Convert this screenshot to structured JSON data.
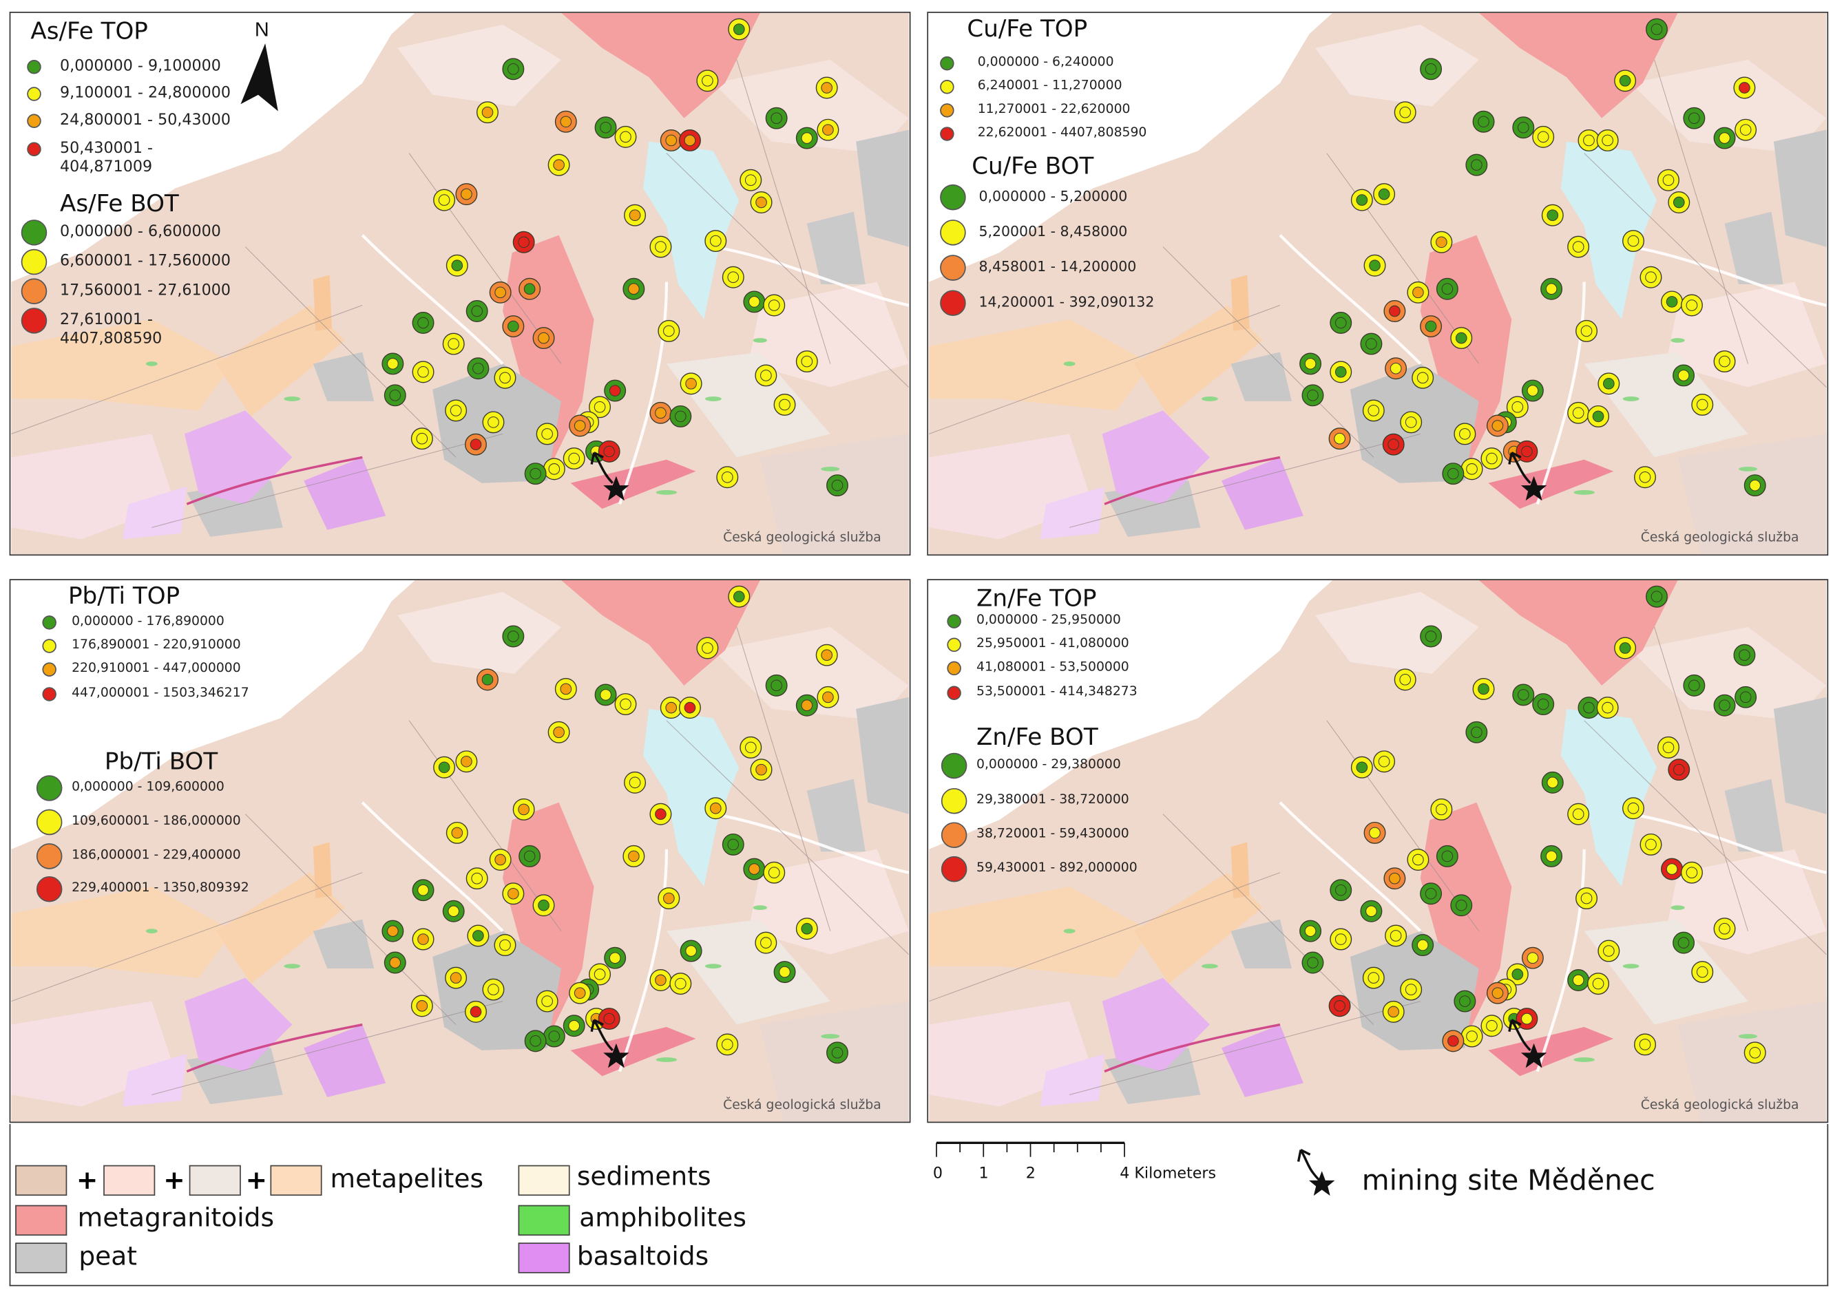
{
  "colors": {
    "green": "#3c9b1f",
    "yellow": "#f7f314",
    "orange_top": "#f2a010",
    "orange_bot": "#f2873a",
    "red": "#e0231c",
    "metapelites_1": "#e6cbb8",
    "metapelites_2": "#fde0d8",
    "metapelites_3": "#efe8e2",
    "metapelites_4": "#fcdcbc",
    "sediments": "#fdf5df",
    "metagranitoids": "#f59a9a",
    "amphibolites": "#66dd55",
    "peat": "#c8c8c8",
    "basaltoids": "#e08ef2"
  },
  "watermark": "Česká geologická služba",
  "north_label": "N",
  "panels": [
    {
      "top_title": "As/Fe TOP",
      "top_classes": [
        "0,000000 - 9,100000",
        "9,100001 - 24,800000",
        "24,800001 - 50,43000",
        "50,430001 - 404,871009"
      ],
      "bot_title": "As/Fe BOT",
      "bot_classes": [
        "0,000000 - 6,600000",
        "6,600001 - 17,560000",
        "17,560001 - 27,61000",
        "27,610001 - 4407,808590"
      ],
      "sites": "00 12 22 00 11 22 32 11 10 12 00 01 12 12 11 22 12 11 11 11 12 33 10 22 20 02 11 01 11 00 00 20 22 11 11 01 11 00 11 00 03 12 11 11 11 11 11 11 22 22 00 11 11 23 11 11 11 01 33 00 11 00"
    },
    {
      "top_title": "Cu/Fe TOP",
      "top_classes": [
        "0,000000 - 6,240000",
        "6,240001 - 11,270000",
        "11,270001 - 22,620000",
        "22,620001 - 4407,808590"
      ],
      "bot_title": "Cu/Fe BOT",
      "bot_classes": [
        "0,000000 - 5,200000",
        "5,200001 - 8,458000",
        "8,458001 - 14,200000",
        "14,200001 - 392,090132"
      ],
      "sites": "00 11 00 00 11 11 11 10 00 13 00 01 11 00 10 10 10 11 11 11 10 12 10 12 00 01 11 10 11 00 23 20 10 00 11 01 10 21 11 00 01 10 01 11 11 11 11 01 22 11 10 11 21 33 11 11 11 22 33 00 11 01"
    },
    {
      "top_title": "Pb/Ti TOP",
      "top_classes": [
        "0,000000 - 176,890000",
        "176,890001 - 220,910000",
        "220,910001 - 447,000000",
        "447,000001 - 1503,346217"
      ],
      "bot_title": "Pb/Ti BOT",
      "bot_classes": [
        "0,000000 - 109,600000",
        "109,600001 - 186,000000",
        "186,000001 - 229,400000",
        "229,400001 - 1350,809392"
      ],
      "sites": "00 20 12 01 11 12 13 11 10 12 00 02 12 12 10 12 11 13 12 11 12 12 12 12 00 12 00 02 11 01 11 12 10 01 12 02 12 10 11 02 01 01 11 10 12 11 11 00 12 12 11 01 12 13 11 00 01 12 33 00 11 00"
    },
    {
      "top_title": "Zn/Fe TOP",
      "top_classes": [
        "0,000000 - 25,950000",
        "25,950001 - 41,080000",
        "41,080001 - 53,500000",
        "53,500001 - 414,348273"
      ],
      "bot_title": "Zn/Fe BOT",
      "bot_classes": [
        "0,000000 - 29,380000",
        "29,380001 - 38,720000",
        "38,720001 - 59,430000",
        "59,430001 - 892,000000"
      ],
      "sites": "00 11 10 00 00 00 11 10 00 00 00 00 00 00 10 11 01 11 11 11 33 11 21 11 00 01 11 31 11 00 22 00 00 01 11 01 11 11 01 00 21 11 00 11 11 11 10 11 22 01 11 11 33 12 00 11 11 10 31 23 11 11"
    }
  ],
  "legend": {
    "metapelites": "metapelites",
    "plus": "+",
    "sediments": "sediments",
    "metagranitoids": "metagranitoids",
    "amphibolites": "amphibolites",
    "peat": "peat",
    "basaltoids": "basaltoids",
    "scale_ticks": [
      "0",
      "1",
      "2",
      "4 Kilometers"
    ],
    "mining_site": "mining site Měděnec"
  }
}
